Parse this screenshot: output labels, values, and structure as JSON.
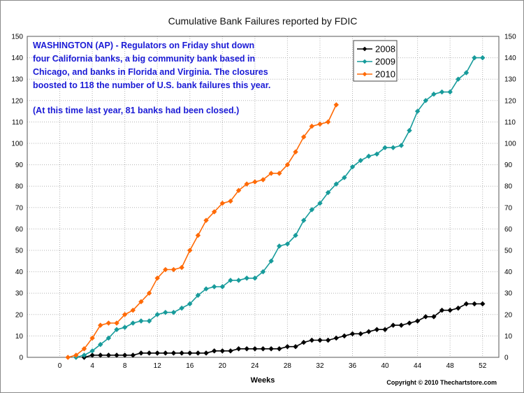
{
  "chart_data": {
    "type": "line",
    "title": "Cumulative Bank Failures reported by FDIC",
    "xlabel": "Weeks",
    "ylabel": "",
    "xlim": [
      -4,
      54
    ],
    "ylim": [
      0,
      150
    ],
    "x_ticks": [
      0,
      4,
      8,
      12,
      16,
      20,
      24,
      28,
      32,
      36,
      40,
      44,
      48,
      52
    ],
    "y_ticks": [
      0,
      10,
      20,
      30,
      40,
      50,
      60,
      70,
      80,
      90,
      100,
      110,
      120,
      130,
      140,
      150
    ],
    "grid": true,
    "legend_position": "top-right",
    "annotation": [
      "WASHINGTON (AP) - Regulators on Friday shut down",
      "four California banks, a big community bank based in",
      "Chicago, and banks in Florida and Virginia. The closures",
      "boosted to 118 the number of U.S. bank failures this year.",
      "",
      "(At this time last year, 81 banks had been closed.)"
    ],
    "copyright": "Copyright © 2010 Thechartstore.com",
    "series": [
      {
        "name": "2008",
        "color": "#000000",
        "x": [
          3,
          4,
          5,
          6,
          7,
          8,
          9,
          10,
          11,
          12,
          13,
          14,
          15,
          16,
          17,
          18,
          19,
          20,
          21,
          22,
          23,
          24,
          25,
          26,
          27,
          28,
          29,
          30,
          31,
          32,
          33,
          34,
          35,
          36,
          37,
          38,
          39,
          40,
          41,
          42,
          43,
          44,
          45,
          46,
          47,
          48,
          49,
          50,
          51,
          52
        ],
        "values": [
          0,
          1,
          1,
          1,
          1,
          1,
          1,
          2,
          2,
          2,
          2,
          2,
          2,
          2,
          2,
          2,
          3,
          3,
          3,
          4,
          4,
          4,
          4,
          4,
          4,
          5,
          5,
          7,
          8,
          8,
          8,
          9,
          10,
          11,
          11,
          12,
          13,
          13,
          15,
          15,
          16,
          17,
          19,
          19,
          22,
          22,
          23,
          25,
          25,
          25
        ]
      },
      {
        "name": "2009",
        "color": "#179b9b",
        "x": [
          2,
          3,
          4,
          5,
          6,
          7,
          8,
          9,
          10,
          11,
          12,
          13,
          14,
          15,
          16,
          17,
          18,
          19,
          20,
          21,
          22,
          23,
          24,
          25,
          26,
          27,
          28,
          29,
          30,
          31,
          32,
          33,
          34,
          35,
          36,
          37,
          38,
          39,
          40,
          41,
          42,
          43,
          44,
          45,
          46,
          47,
          48,
          49,
          50,
          51,
          52
        ],
        "values": [
          0,
          1,
          3,
          6,
          9,
          13,
          14,
          16,
          17,
          17,
          20,
          21,
          21,
          23,
          25,
          29,
          32,
          33,
          33,
          36,
          36,
          37,
          37,
          40,
          45,
          52,
          53,
          57,
          64,
          69,
          72,
          77,
          81,
          84,
          89,
          92,
          94,
          95,
          98,
          98,
          99,
          106,
          115,
          120,
          123,
          124,
          124,
          130,
          133,
          140,
          140
        ]
      },
      {
        "name": "2010",
        "color": "#ff6a06",
        "x": [
          1,
          2,
          3,
          4,
          5,
          6,
          7,
          8,
          9,
          10,
          11,
          12,
          13,
          14,
          15,
          16,
          17,
          18,
          19,
          20,
          21,
          22,
          23,
          24,
          25,
          26,
          27,
          28,
          29,
          30,
          31,
          32,
          33,
          34
        ],
        "values": [
          0,
          1,
          4,
          9,
          15,
          16,
          16,
          20,
          22,
          26,
          30,
          37,
          41,
          41,
          42,
          50,
          57,
          64,
          68,
          72,
          73,
          78,
          81,
          82,
          83,
          86,
          86,
          90,
          96,
          103,
          108,
          109,
          110,
          118
        ]
      }
    ]
  }
}
